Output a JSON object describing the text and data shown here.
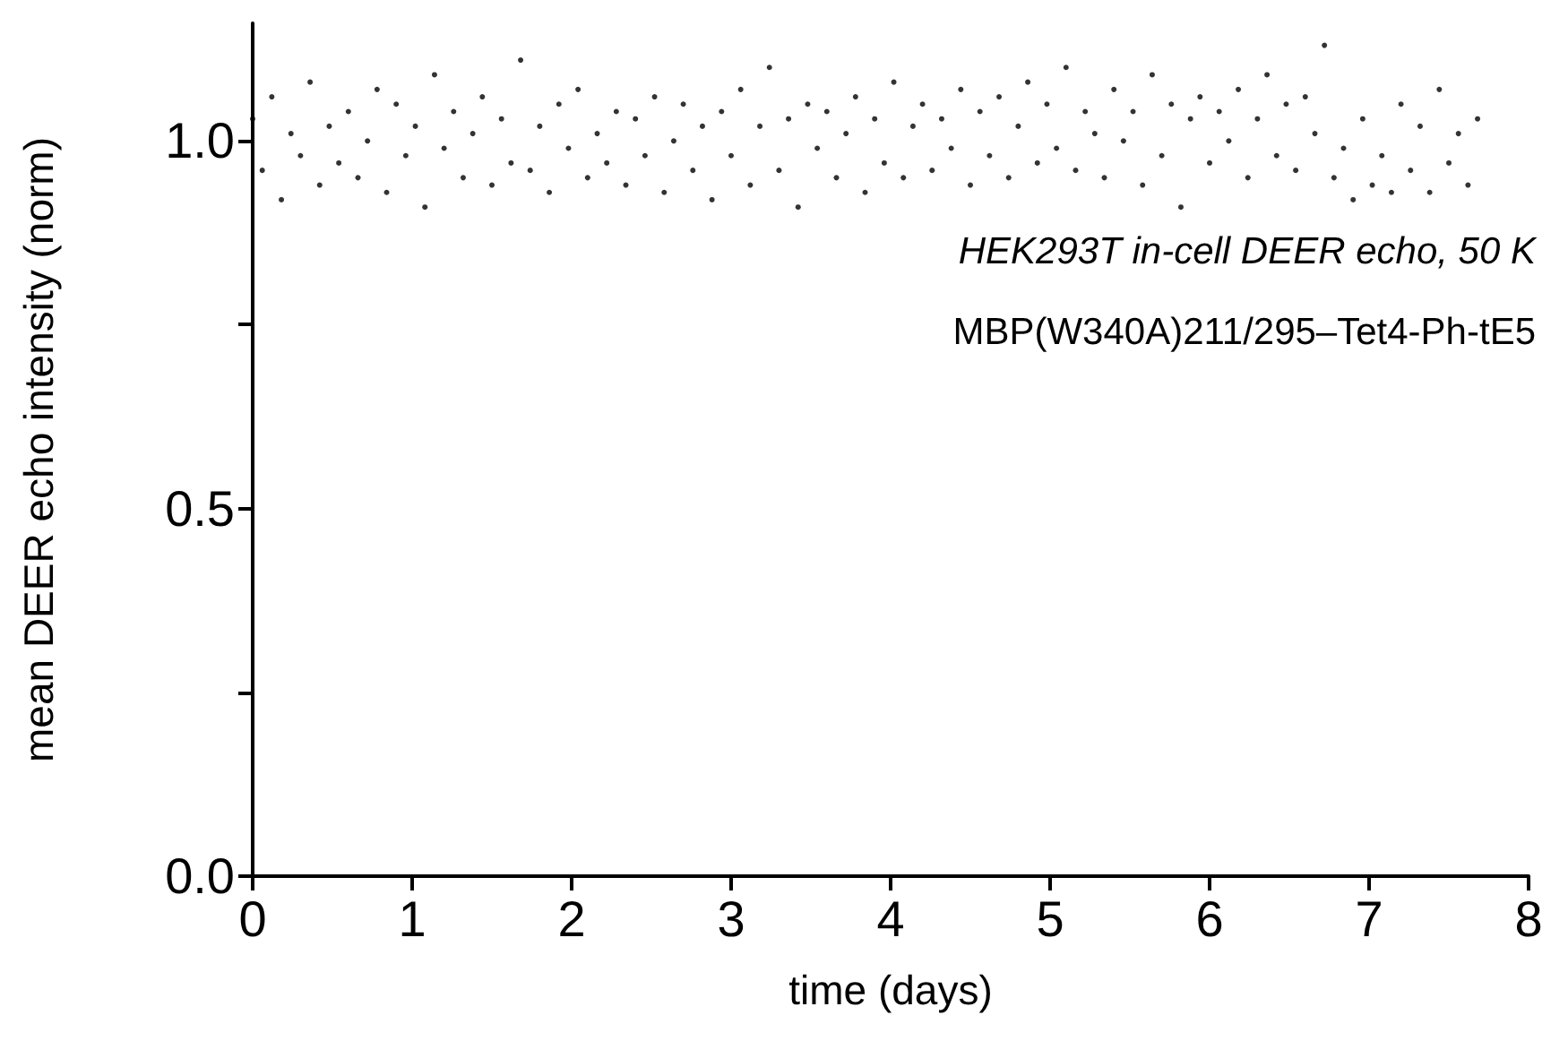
{
  "chart_data": {
    "type": "scatter",
    "xlabel": "time (days)",
    "ylabel": "mean DEER echo intensity (norm)",
    "annotations": [
      "HEK293T in-cell DEER echo, 50 K",
      "MBP(W340A)211/295–Tet4-Ph-tE5"
    ],
    "xlim": [
      0,
      8.0
    ],
    "xticks": [
      0,
      1,
      2,
      3,
      4,
      5,
      6,
      7,
      8
    ],
    "ylim": [
      0,
      1.16
    ],
    "yticks": [
      {
        "value": 0,
        "label": "0.0"
      },
      {
        "value": 0.25,
        "label": null
      },
      {
        "value": 0.5,
        "label": "0.5"
      },
      {
        "value": 0.75,
        "label": null
      },
      {
        "value": 1,
        "label": "1.0"
      }
    ],
    "marker": "circle",
    "series": [
      {
        "color": "#000000",
        "x": [
          0,
          0.06,
          0.12,
          0.18,
          0.24,
          0.3,
          0.36,
          0.42,
          0.48,
          0.54,
          0.6,
          0.66,
          0.72,
          0.78,
          0.84,
          0.9,
          0.96,
          1.02,
          1.08,
          1.14,
          1.2,
          1.26,
          1.32,
          1.38,
          1.44,
          1.5,
          1.56,
          1.62,
          1.68,
          1.74,
          1.8,
          1.86,
          1.92,
          1.98,
          2.04,
          2.1,
          2.16,
          2.22,
          2.28,
          2.34,
          2.4,
          2.46,
          2.52,
          2.58,
          2.64,
          2.7,
          2.76,
          2.82,
          2.88,
          2.94,
          3,
          3.06,
          3.12,
          3.18,
          3.24,
          3.3,
          3.36,
          3.42,
          3.48,
          3.54,
          3.6,
          3.66,
          3.72,
          3.78,
          3.84,
          3.9,
          3.96,
          4.02,
          4.08,
          4.14,
          4.2,
          4.26,
          4.32,
          4.38,
          4.44,
          4.5,
          4.56,
          4.62,
          4.68,
          4.74,
          4.8,
          4.86,
          4.92,
          4.98,
          5.04,
          5.1,
          5.16,
          5.22,
          5.28,
          5.34,
          5.4,
          5.46,
          5.52,
          5.58,
          5.64,
          5.7,
          5.76,
          5.82,
          5.88,
          5.94,
          6,
          6.06,
          6.12,
          6.18,
          6.24,
          6.3,
          6.36,
          6.42,
          6.48,
          6.54,
          6.6,
          6.66,
          6.72,
          6.78,
          6.84,
          6.9,
          6.96,
          7.02,
          7.08,
          7.14,
          7.2,
          7.26,
          7.32,
          7.38,
          7.44,
          7.5,
          7.56,
          7.62,
          7.68
        ],
        "values": [
          1.03,
          0.96,
          1.06,
          0.92,
          1.01,
          0.98,
          1.08,
          0.94,
          1.02,
          0.97,
          1.04,
          0.95,
          1.0,
          1.07,
          0.93,
          1.05,
          0.98,
          1.02,
          0.91,
          1.09,
          0.99,
          1.04,
          0.95,
          1.01,
          1.06,
          0.94,
          1.03,
          0.97,
          1.11,
          0.96,
          1.02,
          0.93,
          1.05,
          0.99,
          1.07,
          0.95,
          1.01,
          0.97,
          1.04,
          0.94,
          1.03,
          0.98,
          1.06,
          0.93,
          1.0,
          1.05,
          0.96,
          1.02,
          0.92,
          1.04,
          0.98,
          1.07,
          0.94,
          1.02,
          1.1,
          0.96,
          1.03,
          0.91,
          1.05,
          0.99,
          1.04,
          0.95,
          1.01,
          1.06,
          0.93,
          1.03,
          0.97,
          1.08,
          0.95,
          1.02,
          1.05,
          0.96,
          1.03,
          0.99,
          1.07,
          0.94,
          1.04,
          0.98,
          1.06,
          0.95,
          1.02,
          1.08,
          0.97,
          1.05,
          0.99,
          1.1,
          0.96,
          1.04,
          1.01,
          0.95,
          1.07,
          1.0,
          1.04,
          0.94,
          1.09,
          0.98,
          1.05,
          0.91,
          1.03,
          1.06,
          0.97,
          1.04,
          1.0,
          1.07,
          0.95,
          1.03,
          1.09,
          0.98,
          1.05,
          0.96,
          1.06,
          1.01,
          1.13,
          0.95,
          0.99,
          0.92,
          1.03,
          0.94,
          0.98,
          0.93,
          1.05,
          0.96,
          1.02,
          0.93,
          1.07,
          0.97,
          1.01,
          0.94,
          1.03
        ]
      }
    ]
  }
}
